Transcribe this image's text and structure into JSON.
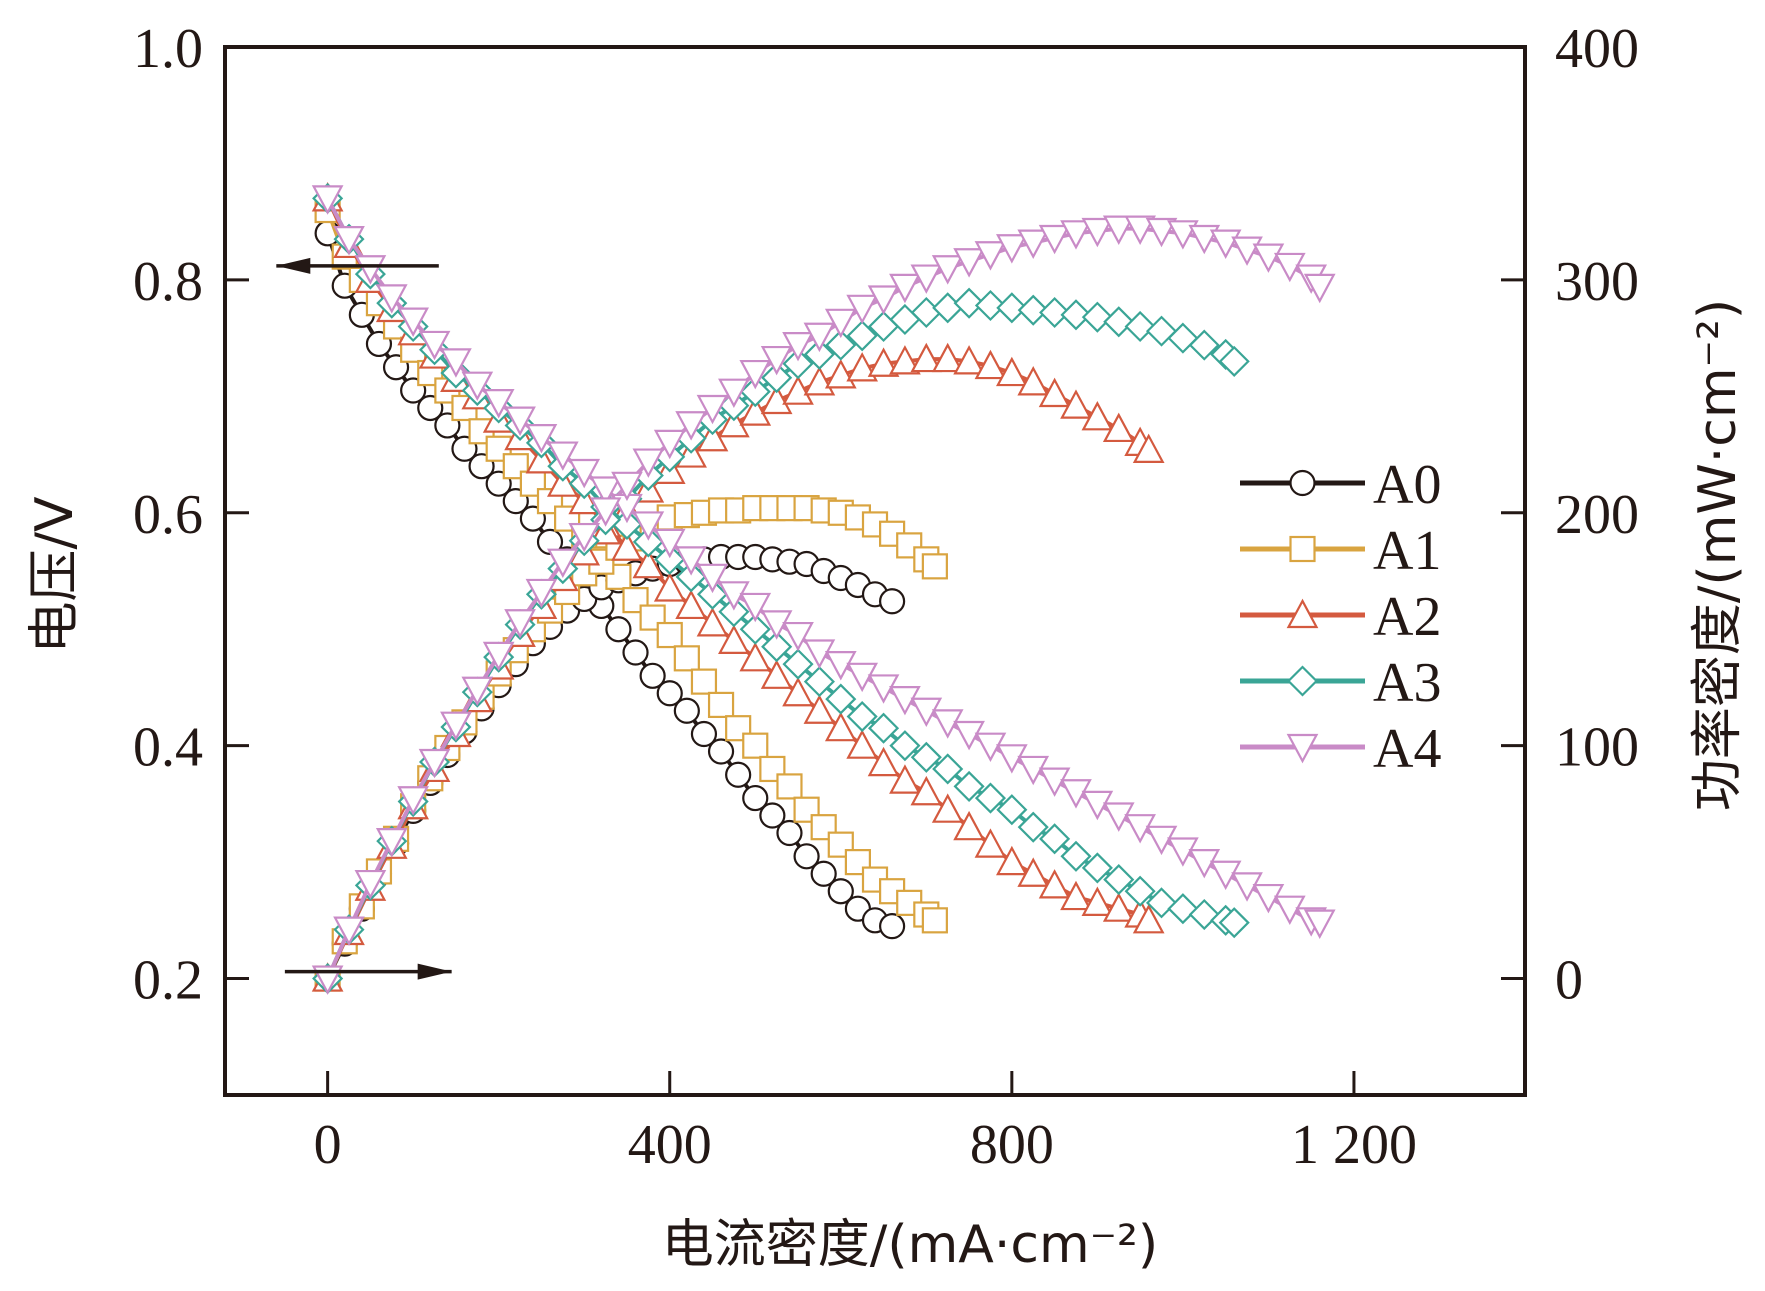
{
  "chart_data": {
    "type": "line",
    "xlabel": "电流密度/(mA·cm⁻²)",
    "ylabel_left": "电压/V",
    "ylabel_right": "功率密度/(mW·cm⁻²)",
    "xlim": [
      -120,
      1400
    ],
    "ylim_left": [
      0.1,
      1.0
    ],
    "ylim_right": [
      -50,
      400
    ],
    "x_ticks": [
      0,
      400,
      800,
      1200
    ],
    "x_tick_labels": [
      "0",
      "400",
      "800",
      "1 200"
    ],
    "y_left_ticks": [
      0.2,
      0.4,
      0.6,
      0.8,
      1.0
    ],
    "y_left_tick_labels": [
      "0.2",
      "0.4",
      "0.6",
      "0.8",
      "1.0"
    ],
    "y_right_ticks": [
      0,
      100,
      200,
      300,
      400
    ],
    "y_right_tick_labels": [
      "0",
      "100",
      "200",
      "300",
      "400"
    ],
    "grid": false,
    "legend_position": "right",
    "arrows": [
      {
        "direction": "left",
        "axis": "voltage",
        "x_from": 130,
        "x_to": -60,
        "y": 0.812
      },
      {
        "direction": "right",
        "axis": "power",
        "x_from": -50,
        "x_to": 145,
        "y": 3
      }
    ],
    "series": [
      {
        "name": "A0",
        "marker": "circle",
        "color": "#231815",
        "voltage_x": [
          0,
          20,
          40,
          60,
          80,
          100,
          120,
          140,
          160,
          180,
          200,
          220,
          240,
          260,
          280,
          300,
          320,
          340,
          360,
          380,
          400,
          420,
          440,
          460,
          480,
          500,
          520,
          540,
          560,
          580,
          600,
          620,
          640,
          660
        ],
        "voltage_y": [
          0.84,
          0.795,
          0.77,
          0.745,
          0.725,
          0.705,
          0.69,
          0.675,
          0.655,
          0.64,
          0.625,
          0.61,
          0.595,
          0.575,
          0.56,
          0.54,
          0.52,
          0.5,
          0.48,
          0.46,
          0.445,
          0.43,
          0.41,
          0.395,
          0.375,
          0.355,
          0.34,
          0.325,
          0.305,
          0.29,
          0.275,
          0.26,
          0.25,
          0.245
        ],
        "power_x": [
          0,
          20,
          40,
          60,
          80,
          100,
          120,
          140,
          160,
          180,
          200,
          220,
          240,
          260,
          280,
          300,
          320,
          340,
          360,
          380,
          400,
          420,
          440,
          460,
          480,
          500,
          520,
          540,
          560,
          580,
          600,
          620,
          640,
          660
        ],
        "power_y": [
          0,
          15,
          30,
          45,
          58,
          72,
          84,
          96,
          106,
          116,
          126,
          135,
          144,
          151,
          158,
          163,
          168,
          171,
          174,
          176,
          178,
          179,
          180,
          181,
          181,
          181,
          180,
          179,
          178,
          175,
          172,
          169,
          165,
          162
        ]
      },
      {
        "name": "A1",
        "marker": "square",
        "color": "#d9a440",
        "voltage_x": [
          0,
          20,
          40,
          60,
          80,
          100,
          120,
          140,
          160,
          180,
          200,
          220,
          240,
          260,
          280,
          300,
          320,
          340,
          360,
          380,
          400,
          420,
          440,
          460,
          480,
          500,
          520,
          540,
          560,
          580,
          600,
          620,
          640,
          660,
          680,
          700,
          710
        ],
        "voltage_y": [
          0.86,
          0.82,
          0.8,
          0.78,
          0.76,
          0.74,
          0.72,
          0.705,
          0.69,
          0.67,
          0.655,
          0.64,
          0.625,
          0.61,
          0.595,
          0.58,
          0.56,
          0.545,
          0.525,
          0.51,
          0.495,
          0.475,
          0.455,
          0.435,
          0.415,
          0.4,
          0.38,
          0.365,
          0.345,
          0.33,
          0.315,
          0.3,
          0.285,
          0.275,
          0.265,
          0.255,
          0.25
        ],
        "power_x": [
          0,
          20,
          40,
          60,
          80,
          100,
          120,
          140,
          160,
          180,
          200,
          220,
          240,
          260,
          280,
          300,
          320,
          340,
          360,
          380,
          400,
          420,
          440,
          460,
          480,
          500,
          520,
          540,
          560,
          580,
          600,
          620,
          640,
          660,
          680,
          700,
          710
        ],
        "power_y": [
          0,
          16,
          31,
          46,
          60,
          74,
          86,
          99,
          110,
          121,
          131,
          141,
          150,
          158,
          166,
          174,
          179,
          185,
          189,
          194,
          198,
          199,
          200,
          201,
          201,
          202,
          202,
          202,
          202,
          201,
          200,
          198,
          195,
          191,
          186,
          180,
          177
        ]
      },
      {
        "name": "A2",
        "marker": "triangle-up",
        "color": "#d45a3f",
        "voltage_x": [
          0,
          25,
          50,
          75,
          100,
          125,
          150,
          175,
          200,
          225,
          250,
          275,
          300,
          325,
          350,
          375,
          400,
          425,
          450,
          475,
          500,
          525,
          550,
          575,
          600,
          625,
          650,
          675,
          700,
          725,
          750,
          775,
          800,
          825,
          850,
          875,
          900,
          925,
          950,
          960
        ],
        "voltage_y": [
          0.87,
          0.83,
          0.8,
          0.775,
          0.755,
          0.735,
          0.715,
          0.7,
          0.68,
          0.665,
          0.645,
          0.625,
          0.61,
          0.59,
          0.57,
          0.555,
          0.535,
          0.52,
          0.505,
          0.49,
          0.475,
          0.46,
          0.445,
          0.43,
          0.415,
          0.4,
          0.385,
          0.37,
          0.36,
          0.345,
          0.33,
          0.315,
          0.3,
          0.29,
          0.28,
          0.27,
          0.265,
          0.26,
          0.255,
          0.25
        ],
        "power_x": [
          0,
          25,
          50,
          75,
          100,
          125,
          150,
          175,
          200,
          225,
          250,
          275,
          300,
          325,
          350,
          375,
          400,
          425,
          450,
          475,
          500,
          525,
          550,
          575,
          600,
          625,
          650,
          675,
          700,
          725,
          750,
          775,
          800,
          825,
          850,
          875,
          900,
          925,
          950,
          960
        ],
        "power_y": [
          0,
          20,
          39,
          57,
          74,
          90,
          105,
          120,
          134,
          148,
          160,
          172,
          183,
          192,
          201,
          210,
          218,
          225,
          232,
          238,
          243,
          248,
          252,
          256,
          259,
          262,
          264,
          265,
          266,
          266,
          265,
          263,
          260,
          256,
          251,
          246,
          241,
          236,
          230,
          227
        ]
      },
      {
        "name": "A3",
        "marker": "diamond",
        "color": "#3aa596",
        "voltage_x": [
          0,
          25,
          50,
          75,
          100,
          125,
          150,
          175,
          200,
          225,
          250,
          275,
          300,
          325,
          350,
          375,
          400,
          425,
          450,
          475,
          500,
          525,
          550,
          575,
          600,
          625,
          650,
          675,
          700,
          725,
          750,
          775,
          800,
          825,
          850,
          875,
          900,
          925,
          950,
          975,
          1000,
          1025,
          1050,
          1060
        ],
        "voltage_y": [
          0.87,
          0.835,
          0.805,
          0.78,
          0.76,
          0.74,
          0.72,
          0.705,
          0.69,
          0.675,
          0.66,
          0.64,
          0.625,
          0.605,
          0.59,
          0.575,
          0.56,
          0.545,
          0.53,
          0.515,
          0.5,
          0.485,
          0.47,
          0.455,
          0.44,
          0.425,
          0.415,
          0.4,
          0.39,
          0.38,
          0.365,
          0.355,
          0.345,
          0.33,
          0.32,
          0.305,
          0.295,
          0.285,
          0.275,
          0.265,
          0.26,
          0.255,
          0.25,
          0.248
        ],
        "power_x": [
          0,
          25,
          50,
          75,
          100,
          125,
          150,
          175,
          200,
          225,
          250,
          275,
          300,
          325,
          350,
          375,
          400,
          425,
          450,
          475,
          500,
          525,
          550,
          575,
          600,
          625,
          650,
          675,
          700,
          725,
          750,
          775,
          800,
          825,
          850,
          875,
          900,
          925,
          950,
          975,
          1000,
          1025,
          1050,
          1060
        ],
        "power_y": [
          0,
          21,
          40,
          59,
          76,
          93,
          108,
          123,
          138,
          152,
          165,
          176,
          188,
          197,
          206,
          216,
          224,
          232,
          240,
          246,
          252,
          258,
          264,
          268,
          272,
          276,
          280,
          283,
          286,
          288,
          290,
          289,
          288,
          287,
          286,
          285,
          284,
          282,
          280,
          278,
          275,
          272,
          268,
          265
        ]
      },
      {
        "name": "A4",
        "marker": "triangle-down",
        "color": "#c98bc7",
        "voltage_x": [
          0,
          25,
          50,
          75,
          100,
          125,
          150,
          175,
          200,
          225,
          250,
          275,
          300,
          325,
          350,
          375,
          400,
          425,
          450,
          475,
          500,
          525,
          550,
          575,
          600,
          625,
          650,
          675,
          700,
          725,
          750,
          775,
          800,
          825,
          850,
          875,
          900,
          925,
          950,
          975,
          1000,
          1025,
          1050,
          1075,
          1100,
          1125,
          1150,
          1160
        ],
        "voltage_y": [
          0.87,
          0.835,
          0.81,
          0.785,
          0.765,
          0.745,
          0.73,
          0.71,
          0.695,
          0.68,
          0.665,
          0.65,
          0.635,
          0.62,
          0.605,
          0.59,
          0.575,
          0.56,
          0.545,
          0.53,
          0.52,
          0.505,
          0.495,
          0.48,
          0.47,
          0.46,
          0.45,
          0.44,
          0.43,
          0.42,
          0.41,
          0.4,
          0.39,
          0.38,
          0.37,
          0.36,
          0.35,
          0.34,
          0.33,
          0.32,
          0.31,
          0.3,
          0.29,
          0.28,
          0.27,
          0.26,
          0.25,
          0.248
        ],
        "power_x": [
          0,
          25,
          50,
          75,
          100,
          125,
          150,
          175,
          200,
          225,
          250,
          275,
          300,
          325,
          350,
          375,
          400,
          425,
          450,
          475,
          500,
          525,
          550,
          575,
          600,
          625,
          650,
          675,
          700,
          725,
          750,
          775,
          800,
          825,
          850,
          875,
          900,
          925,
          950,
          975,
          1000,
          1025,
          1050,
          1075,
          1100,
          1125,
          1150,
          1160
        ],
        "power_y": [
          0,
          21,
          41,
          59,
          77,
          93,
          109,
          124,
          139,
          153,
          166,
          179,
          190,
          201,
          212,
          222,
          230,
          238,
          245,
          252,
          260,
          266,
          272,
          276,
          282,
          288,
          292,
          297,
          301,
          305,
          308,
          311,
          314,
          316,
          318,
          320,
          321,
          322,
          322,
          321,
          320,
          318,
          316,
          313,
          310,
          306,
          301,
          297
        ]
      }
    ]
  }
}
